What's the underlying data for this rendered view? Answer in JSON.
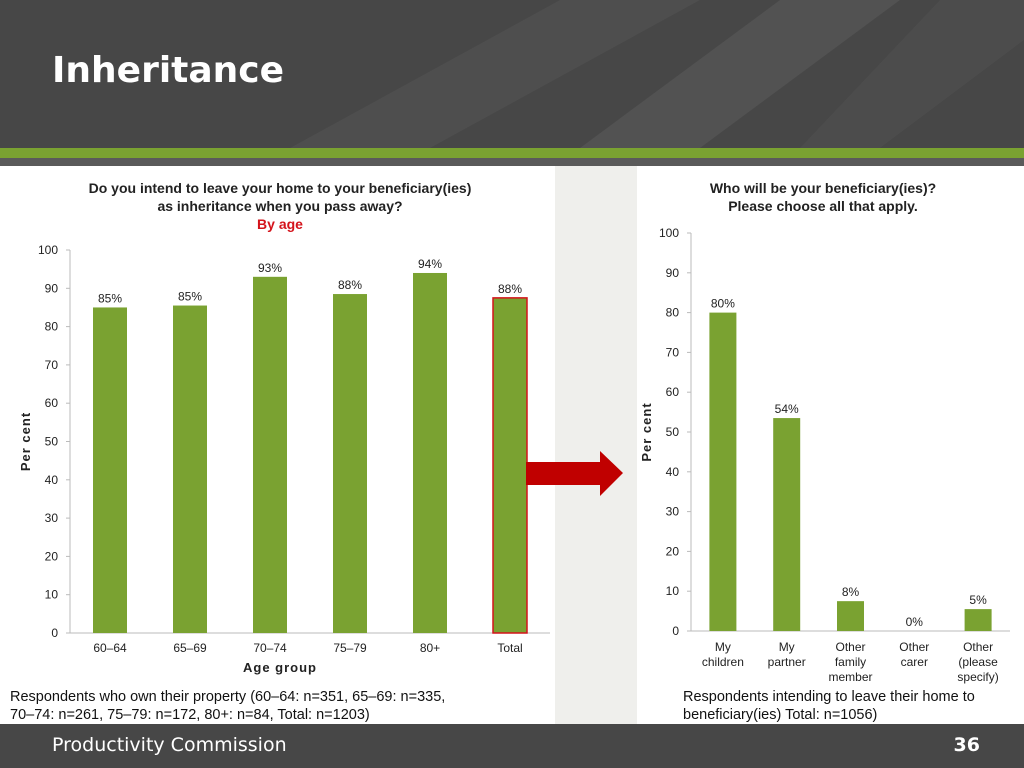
{
  "slide": {
    "title": "Inheritance",
    "organisation": "Productivity Commission",
    "page_number": "36"
  },
  "colors": {
    "bar": "#7aa231",
    "highlight": "#d4131b",
    "header": "#474747"
  },
  "chart_data": [
    {
      "type": "bar",
      "title": "Do you intend to leave your home to your beneficiary(ies) as inheritance when you pass away?",
      "title_lines": [
        "Do you intend to leave your home to your beneficiary(ies)",
        "as inheritance when you pass away?"
      ],
      "subtitle": "By age",
      "categories": [
        "60–64",
        "65–69",
        "70–74",
        "75–79",
        "80+",
        "Total"
      ],
      "values": [
        85,
        85.5,
        93,
        88.5,
        94,
        87.5
      ],
      "data_labels": [
        "85%",
        "85%",
        "93%",
        "88%",
        "94%",
        "88%"
      ],
      "highlighted_category": "Total",
      "xlabel": "Age group",
      "ylabel": "Per cent",
      "ylim": [
        0,
        100
      ],
      "yticks": [
        0,
        10,
        20,
        30,
        40,
        50,
        60,
        70,
        80,
        90,
        100
      ],
      "grid": false,
      "note_lines": [
        "Respondents who own their property (60–64: n=351, 65–69: n=335,",
        "70–74: n=261, 75–79: n=172, 80+: n=84, Total: n=1203)"
      ]
    },
    {
      "type": "bar",
      "title": "Who will be your beneficiary(ies)? Please choose all that apply.",
      "title_lines": [
        "Who will be your beneficiary(ies)?",
        "Please choose all that apply."
      ],
      "categories": [
        [
          "My",
          "children"
        ],
        [
          "My",
          "partner"
        ],
        [
          "Other",
          "family",
          "member"
        ],
        [
          "Other",
          "carer"
        ],
        [
          "Other",
          "(please",
          "specify)"
        ]
      ],
      "values": [
        80,
        53.5,
        7.5,
        0,
        5.5
      ],
      "data_labels": [
        "80%",
        "54%",
        "8%",
        "0%",
        "5%"
      ],
      "xlabel": "",
      "ylabel": "Per cent",
      "ylim": [
        0,
        100
      ],
      "yticks": [
        0,
        10,
        20,
        30,
        40,
        50,
        60,
        70,
        80,
        90,
        100
      ],
      "grid": false,
      "note_lines": [
        "Respondents intending to leave their home to",
        "beneficiary(ies) Total: n=1056)"
      ]
    }
  ]
}
